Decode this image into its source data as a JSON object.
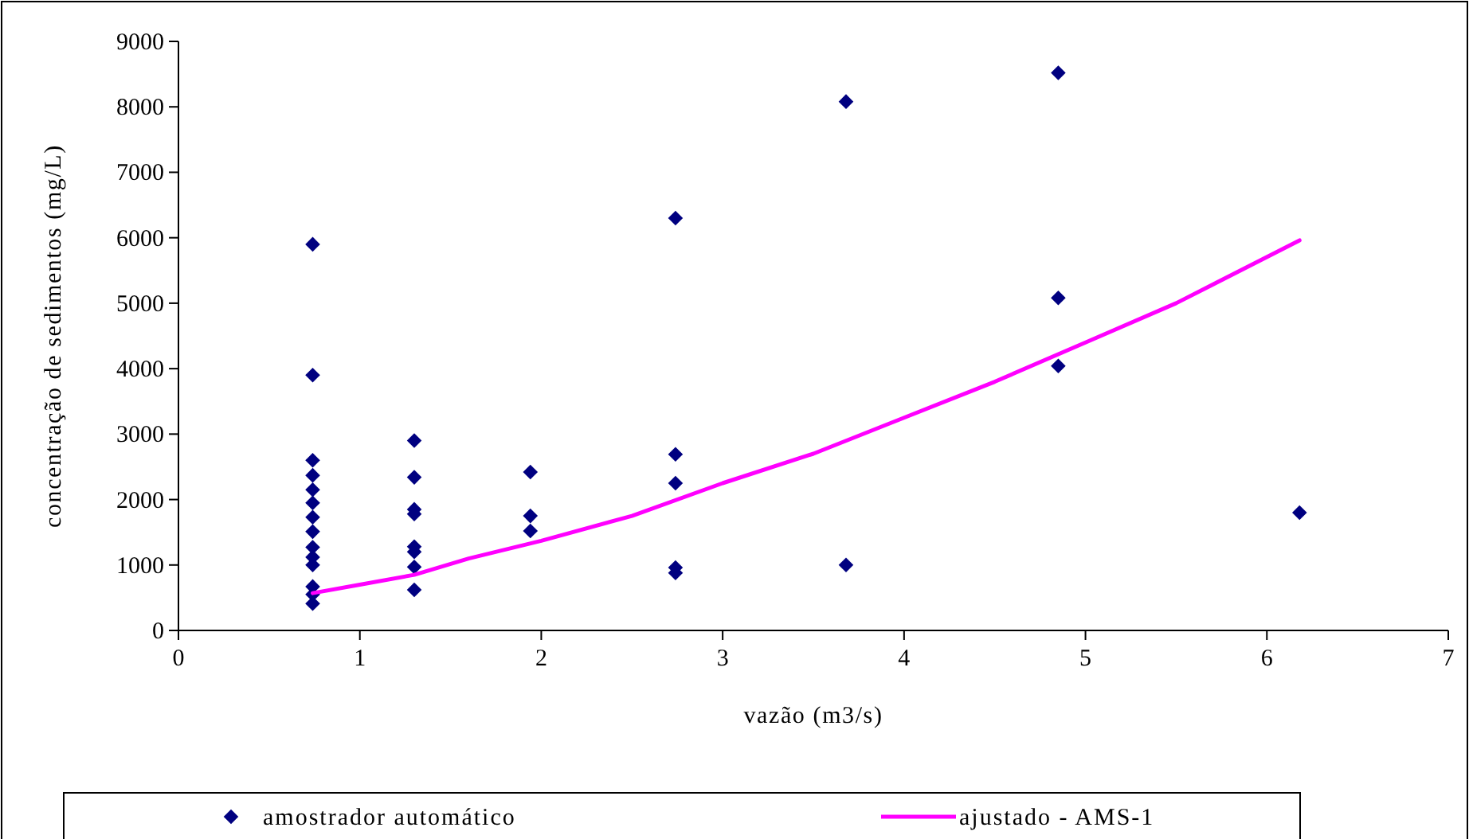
{
  "chart_data": {
    "type": "scatter",
    "xlabel": "vazão (m3/s)",
    "ylabel": "concentração de sedimentos (mg/L)",
    "xlim": [
      0,
      7
    ],
    "xticks": [
      0,
      1,
      2,
      3,
      4,
      5,
      6,
      7
    ],
    "ylim": [
      0,
      9000
    ],
    "yticks": [
      0,
      1000,
      2000,
      3000,
      4000,
      5000,
      6000,
      7000,
      8000,
      9000
    ],
    "grid": false,
    "legend": "bottom",
    "series": [
      {
        "name": "amostrador automático",
        "marker": "diamond",
        "color": "#000080",
        "x": [
          0.74,
          0.74,
          0.74,
          0.74,
          0.74,
          0.74,
          0.74,
          0.74,
          0.74,
          0.74,
          0.74,
          0.74,
          0.74,
          0.74,
          1.3,
          1.3,
          1.3,
          1.3,
          1.3,
          1.3,
          1.3,
          1.3,
          1.94,
          1.94,
          1.94,
          2.74,
          2.74,
          2.74,
          2.74,
          2.74,
          3.68,
          3.68,
          4.85,
          4.85,
          4.85,
          6.18
        ],
        "values": [
          5900,
          3900,
          2600,
          2370,
          2150,
          1950,
          1730,
          1510,
          1270,
          1120,
          1000,
          670,
          550,
          410,
          2900,
          2340,
          1850,
          1780,
          1280,
          1200,
          970,
          620,
          2420,
          1750,
          1520,
          6300,
          2690,
          2250,
          960,
          880,
          8080,
          1000,
          8520,
          5080,
          4040,
          1800
        ]
      },
      {
        "name": "ajustado - AMS-1",
        "type": "line",
        "marker": "none",
        "line_style": "solid",
        "color": "#ff00ff",
        "x": [
          0.74,
          1,
          1.3,
          1.6,
          2,
          2.5,
          3,
          3.5,
          4,
          4.5,
          5,
          5.5,
          6.18
        ],
        "values": [
          570,
          700,
          850,
          1100,
          1370,
          1750,
          2250,
          2700,
          3250,
          3800,
          4400,
          5000,
          5960
        ]
      }
    ]
  }
}
